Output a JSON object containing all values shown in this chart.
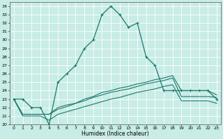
{
  "xlabel": "Humidex (Indice chaleur)",
  "bg_color": "#c8ece6",
  "grid_color": "#ffffff",
  "line_color": "#1a7a6e",
  "xlim": [
    -0.5,
    23.5
  ],
  "ylim": [
    20,
    34.5
  ],
  "xticks": [
    0,
    1,
    2,
    3,
    4,
    5,
    6,
    7,
    8,
    9,
    10,
    11,
    12,
    13,
    14,
    15,
    16,
    17,
    18,
    19,
    20,
    21,
    22,
    23
  ],
  "yticks": [
    20,
    21,
    22,
    23,
    24,
    25,
    26,
    27,
    28,
    29,
    30,
    31,
    32,
    33,
    34
  ],
  "series1_x": [
    0,
    1,
    2,
    3,
    4,
    5,
    6,
    7,
    8,
    9,
    10,
    11,
    12,
    13,
    14,
    15,
    16,
    17,
    18,
    19,
    20,
    21,
    22,
    23
  ],
  "series1_y": [
    23,
    23,
    22,
    22,
    20,
    25,
    26,
    27,
    29,
    30,
    33,
    34,
    33,
    31.5,
    32,
    28,
    27,
    24,
    24,
    24,
    24,
    24,
    24,
    23
  ],
  "series2_x": [
    0,
    1,
    2,
    3,
    4,
    5,
    6,
    7,
    8,
    9,
    10,
    11,
    12,
    13,
    14,
    15,
    16,
    17,
    18,
    19,
    20,
    21,
    22,
    23
  ],
  "series2_y": [
    23,
    21.2,
    21.2,
    21.2,
    21.2,
    22,
    22.3,
    22.5,
    23,
    23.3,
    23.8,
    24,
    24.3,
    24.5,
    24.8,
    25,
    25.3,
    25.5,
    25.8,
    24,
    24,
    24,
    24,
    23.5
  ],
  "series3_x": [
    0,
    1,
    2,
    3,
    4,
    5,
    6,
    7,
    8,
    9,
    10,
    11,
    12,
    13,
    14,
    15,
    16,
    17,
    18,
    19,
    20,
    21,
    22,
    23
  ],
  "series3_y": [
    23,
    21.2,
    21.2,
    21.2,
    21.2,
    21.8,
    22.1,
    22.5,
    22.8,
    23.2,
    23.5,
    23.8,
    24.0,
    24.2,
    24.5,
    24.8,
    25.0,
    25.2,
    25.5,
    23.3,
    23.3,
    23.3,
    23.3,
    23.2
  ],
  "series4_x": [
    0,
    1,
    2,
    3,
    4,
    5,
    6,
    7,
    8,
    9,
    10,
    11,
    12,
    13,
    14,
    15,
    16,
    17,
    18,
    19,
    20,
    21,
    22,
    23
  ],
  "series4_y": [
    23,
    21.0,
    21.0,
    21.0,
    20.5,
    21.2,
    21.5,
    21.8,
    22.1,
    22.4,
    22.7,
    23.0,
    23.2,
    23.5,
    23.8,
    24.0,
    24.2,
    24.5,
    24.7,
    22.8,
    22.8,
    22.8,
    22.8,
    22.5
  ]
}
